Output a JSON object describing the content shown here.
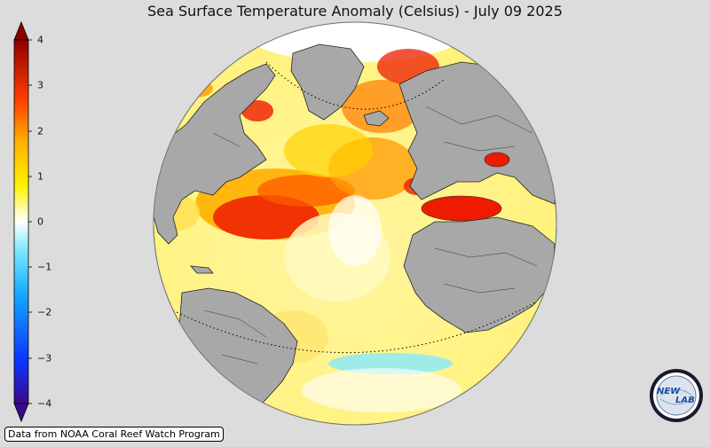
{
  "title": "Sea Surface Temperature Anomaly (Celsius) - July 09 2025",
  "colorbar": {
    "min": -4,
    "max": 4,
    "ticks": [
      "4",
      "3",
      "2",
      "1",
      "0",
      "−1",
      "−2",
      "−3",
      "−4"
    ],
    "colors": [
      "#3a0a8a",
      "#0a35ff",
      "#14a8ff",
      "#7ae8ff",
      "#ffffff",
      "#fff200",
      "#ff9a00",
      "#ee1b00",
      "#8c0000"
    ]
  },
  "credit": "Data from NOAA Coral Reef Watch Program",
  "logo": {
    "text_left": "NEW",
    "text_right": "LAB"
  },
  "map": {
    "land_color": "#a8a8a8",
    "ocean_anomaly_note_colors": {
      "hot": "#e8140a",
      "warm": "#ffb000",
      "mild": "#fff23a",
      "neutral": "#ffffff",
      "cool": "#86eaff"
    }
  }
}
